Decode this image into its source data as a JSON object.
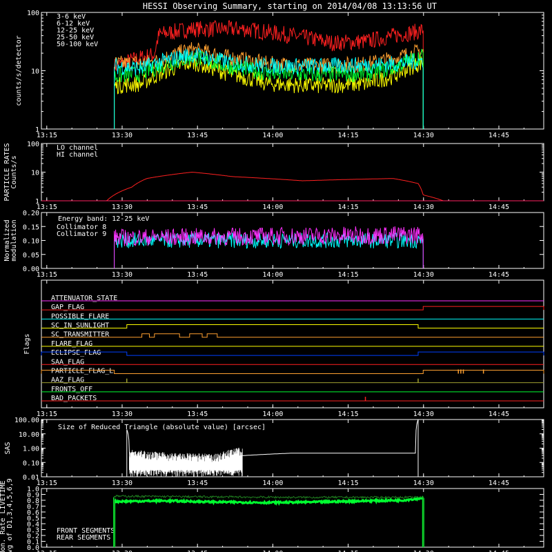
{
  "title": "HESSI Observing Summary, starting on 2014/04/08 13:13:56 UT",
  "x_tick_labels": [
    "13:15",
    "13:30",
    "13:45",
    "14:00",
    "14:15",
    "14:30",
    "14:45"
  ],
  "x_tick_minutes": [
    1.07,
    16.07,
    31.07,
    46.07,
    61.07,
    76.07,
    91.07
  ],
  "x_range_minutes": [
    0,
    100
  ],
  "chart_data": [
    {
      "type": "line",
      "name": "count-rates",
      "ylabel": "counts/s/detector",
      "yscale": "log",
      "ylim": [
        1,
        100
      ],
      "ytick_labels": [
        "1",
        "10",
        "100"
      ],
      "ytick_values": [
        1,
        10,
        100
      ],
      "series": [
        {
          "name": "3-6 keV",
          "color": "#ff2020",
          "x": [
            14.5,
            22.5,
            23.5,
            30,
            40,
            50,
            58,
            65,
            75,
            76
          ],
          "y": [
            12,
            19,
            42,
            52,
            52,
            40,
            30,
            32,
            47,
            50
          ]
        },
        {
          "name": "6-12 keV",
          "color": "#ffa030",
          "x": [
            14.5,
            22.5,
            30,
            37,
            45,
            55,
            65,
            70,
            76
          ],
          "y": [
            13,
            14,
            23,
            17,
            13,
            12,
            13,
            16,
            22
          ]
        },
        {
          "name": "12-25 keV",
          "color": "#ffff00",
          "x": [
            14.5,
            20,
            30,
            37,
            45,
            55,
            65,
            70,
            76
          ],
          "y": [
            5.5,
            6,
            14,
            9,
            6,
            5.5,
            6,
            8,
            14
          ]
        },
        {
          "name": "25-50 keV",
          "color": "#00ff30",
          "x": [
            14.5,
            20,
            30,
            37,
            45,
            55,
            65,
            70,
            76
          ],
          "y": [
            8,
            9,
            17,
            12,
            9,
            8.5,
            9,
            11,
            18
          ]
        },
        {
          "name": "50-100 keV",
          "color": "#00ffff",
          "x": [
            14.5,
            20,
            30,
            37,
            45,
            55,
            65,
            70,
            76
          ],
          "y": [
            12,
            11,
            19,
            14,
            12,
            12,
            12.5,
            13,
            15
          ]
        }
      ]
    },
    {
      "type": "line",
      "name": "particle-rates",
      "ylabel": "PARTICLE RATES\nCounts/s",
      "yscale": "log",
      "ylim": [
        1,
        100
      ],
      "ytick_labels": [
        "1",
        "10",
        "100"
      ],
      "ytick_values": [
        1,
        10,
        100
      ],
      "series": [
        {
          "name": "LO channel",
          "color": "#ff2020",
          "x": [
            0,
            13,
            14.5,
            18,
            21,
            30,
            38,
            45,
            52,
            60,
            70,
            75,
            76,
            80,
            100
          ],
          "y": [
            1,
            1,
            1.6,
            3,
            6,
            10,
            7,
            6,
            5,
            5.5,
            6,
            4,
            1.6,
            1,
            1
          ]
        },
        {
          "name": "HI channel",
          "color": "#ff2060",
          "x": [
            0,
            100
          ],
          "y": [
            1,
            1
          ]
        }
      ]
    },
    {
      "type": "line",
      "name": "modulation",
      "ylabel": "Normalized\nmodulation",
      "ylim": [
        0,
        0.2
      ],
      "ytick_labels": [
        "0.00",
        "0.05",
        "0.10",
        "0.15",
        "0.20"
      ],
      "ytick_values": [
        0,
        0.05,
        0.1,
        0.15,
        0.2
      ],
      "annotation": "Energy band: 12-25 keV",
      "series": [
        {
          "name": "Collimator 8",
          "color": "#00ffff",
          "x": [
            14.5,
            76
          ],
          "y": [
            0.1,
            0.1
          ]
        },
        {
          "name": "Collimator 9",
          "color": "#ff30ff",
          "x": [
            14.5,
            76
          ],
          "y": [
            0.11,
            0.12
          ]
        }
      ]
    },
    {
      "type": "table",
      "name": "flags",
      "ylabel": "Flags",
      "flags": [
        {
          "label": "ATTENUATOR_STATE",
          "color": "#ff30ff",
          "on": []
        },
        {
          "label": "GAP_FLAG",
          "color": "#ff2020",
          "on": [
            [
              76,
              100
            ]
          ]
        },
        {
          "label": "POSSIBLE_FLARE",
          "color": "#00ffff",
          "on": []
        },
        {
          "label": "SC_IN_SUNLIGHT",
          "color": "#ffff00",
          "on": [
            [
              17,
              75
            ]
          ]
        },
        {
          "label": "SC_TRANSMITTER",
          "color": "#ffa030",
          "on": [
            [
              20,
              21.5
            ],
            [
              22.5,
              27.5
            ],
            [
              29.5,
              32
            ],
            [
              33,
              35
            ]
          ]
        },
        {
          "label": "FLARE_FLAG",
          "color": "#ffff00",
          "on": []
        },
        {
          "label": "ECLIPSE_FLAG",
          "color": "#0040ff",
          "on": [
            [
              0,
              17
            ],
            [
              75,
              100
            ]
          ]
        },
        {
          "label": "SAA_FLAG",
          "color": "#ff2020",
          "on": []
        },
        {
          "label": "PARTICLE_FLAG_L",
          "color": "#ffa030",
          "on": [
            [
              0,
              14.5
            ],
            [
              76,
              100
            ]
          ],
          "spikes": [
            83,
            83.5,
            84,
            88
          ]
        },
        {
          "label": "AAZ_FLAG",
          "color": "#a0a030",
          "on": [],
          "spikes": [
            17,
            75
          ]
        },
        {
          "label": "FRONTS_OFF",
          "color": "#00ff30",
          "on": []
        },
        {
          "label": "BAD_PACKETS",
          "color": "#ff2020",
          "on": [],
          "spikes": [
            64.5
          ]
        }
      ]
    },
    {
      "type": "line",
      "name": "sas",
      "ylabel": "SAS",
      "yscale": "log",
      "ylim": [
        0.01,
        100
      ],
      "ytick_labels": [
        "100.00",
        "10.00",
        "1.00",
        "0.10",
        "0.01"
      ],
      "ytick_values": [
        100,
        10,
        1,
        0.1,
        0.01
      ],
      "annotation": "Size of Reduced Triangle (absolute value) [arcsec]",
      "series": [
        {
          "name": "SAS triangle",
          "color": "#ffffff",
          "x": [
            17,
            17.5,
            25,
            35,
            40,
            50,
            60,
            70,
            74.5,
            75
          ],
          "y": [
            20,
            0.2,
            0.12,
            0.1,
            0.3,
            0.45,
            0.45,
            0.45,
            0.45,
            100
          ]
        }
      ]
    },
    {
      "type": "line",
      "name": "livetime",
      "ylabel": "Mon. Rate LIVETIME\navg of D1,3,4,5,6,9",
      "ylim": [
        0,
        1.0
      ],
      "ytick_labels": [
        "0.0",
        "0.1",
        "0.2",
        "0.3",
        "0.4",
        "0.5",
        "0.6",
        "0.7",
        "0.8",
        "0.9",
        "1.0"
      ],
      "ytick_values": [
        0,
        0.1,
        0.2,
        0.3,
        0.4,
        0.5,
        0.6,
        0.7,
        0.8,
        0.9,
        1.0
      ],
      "series": [
        {
          "name": "FRONT SEGMENTS",
          "color": "#00ff30",
          "x": [
            14.5,
            25,
            35,
            45,
            55,
            65,
            72,
            74,
            76
          ],
          "y": [
            0.78,
            0.79,
            0.77,
            0.76,
            0.77,
            0.79,
            0.8,
            0.82,
            0.84
          ]
        },
        {
          "name": "REAR SEGMENTS",
          "color": "#208020",
          "x": [
            14.5,
            30,
            50,
            70,
            76
          ],
          "y": [
            0.87,
            0.86,
            0.85,
            0.85,
            0.85
          ]
        }
      ]
    }
  ]
}
